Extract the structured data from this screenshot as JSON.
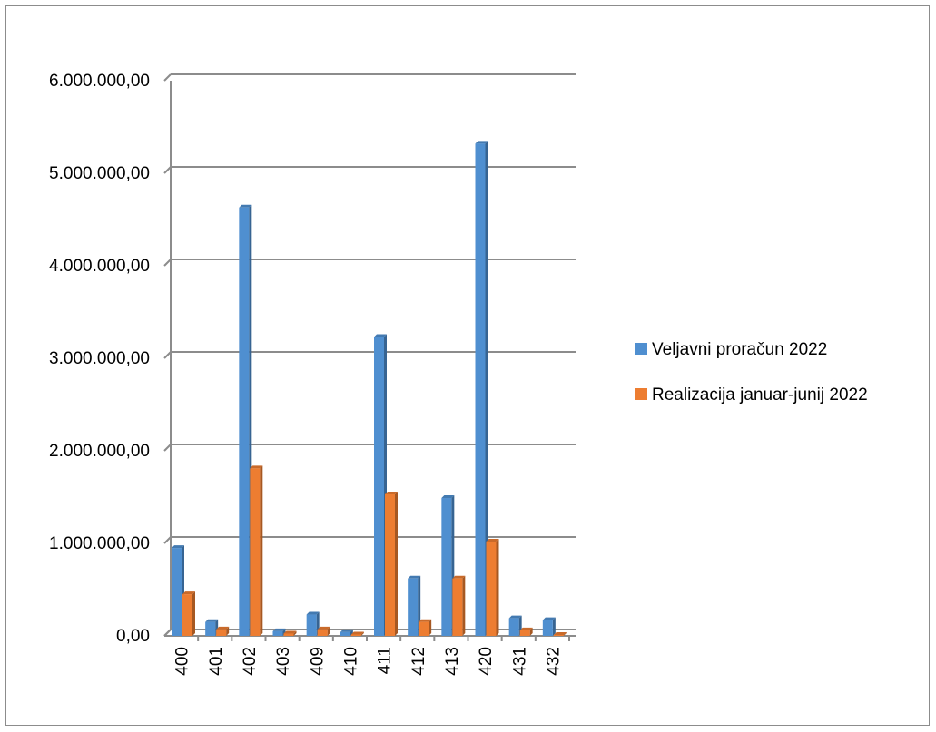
{
  "chart_data": {
    "type": "bar",
    "categories": [
      "400",
      "401",
      "402",
      "403",
      "409",
      "410",
      "411",
      "412",
      "413",
      "420",
      "431",
      "432"
    ],
    "series": [
      {
        "name": "Veljavni proračun 2022",
        "color": "#4f8fd0",
        "values": [
          950000,
          150000,
          4630000,
          50000,
          230000,
          40000,
          3230000,
          620000,
          1490000,
          5320000,
          190000,
          170000
        ]
      },
      {
        "name": "Realizacija januar-junij 2022",
        "color": "#ed7d31",
        "values": [
          450000,
          70000,
          1810000,
          25000,
          70000,
          15000,
          1530000,
          150000,
          620000,
          1020000,
          60000,
          10000
        ]
      }
    ],
    "y_ticks": [
      "0,00",
      "1.000.000,00",
      "2.000.000,00",
      "3.000.000,00",
      "4.000.000,00",
      "5.000.000,00",
      "6.000.000,00"
    ],
    "ylim": [
      0,
      6000000
    ],
    "grid": true,
    "legend_position": "right",
    "title": "",
    "xlabel": "",
    "ylabel": ""
  }
}
